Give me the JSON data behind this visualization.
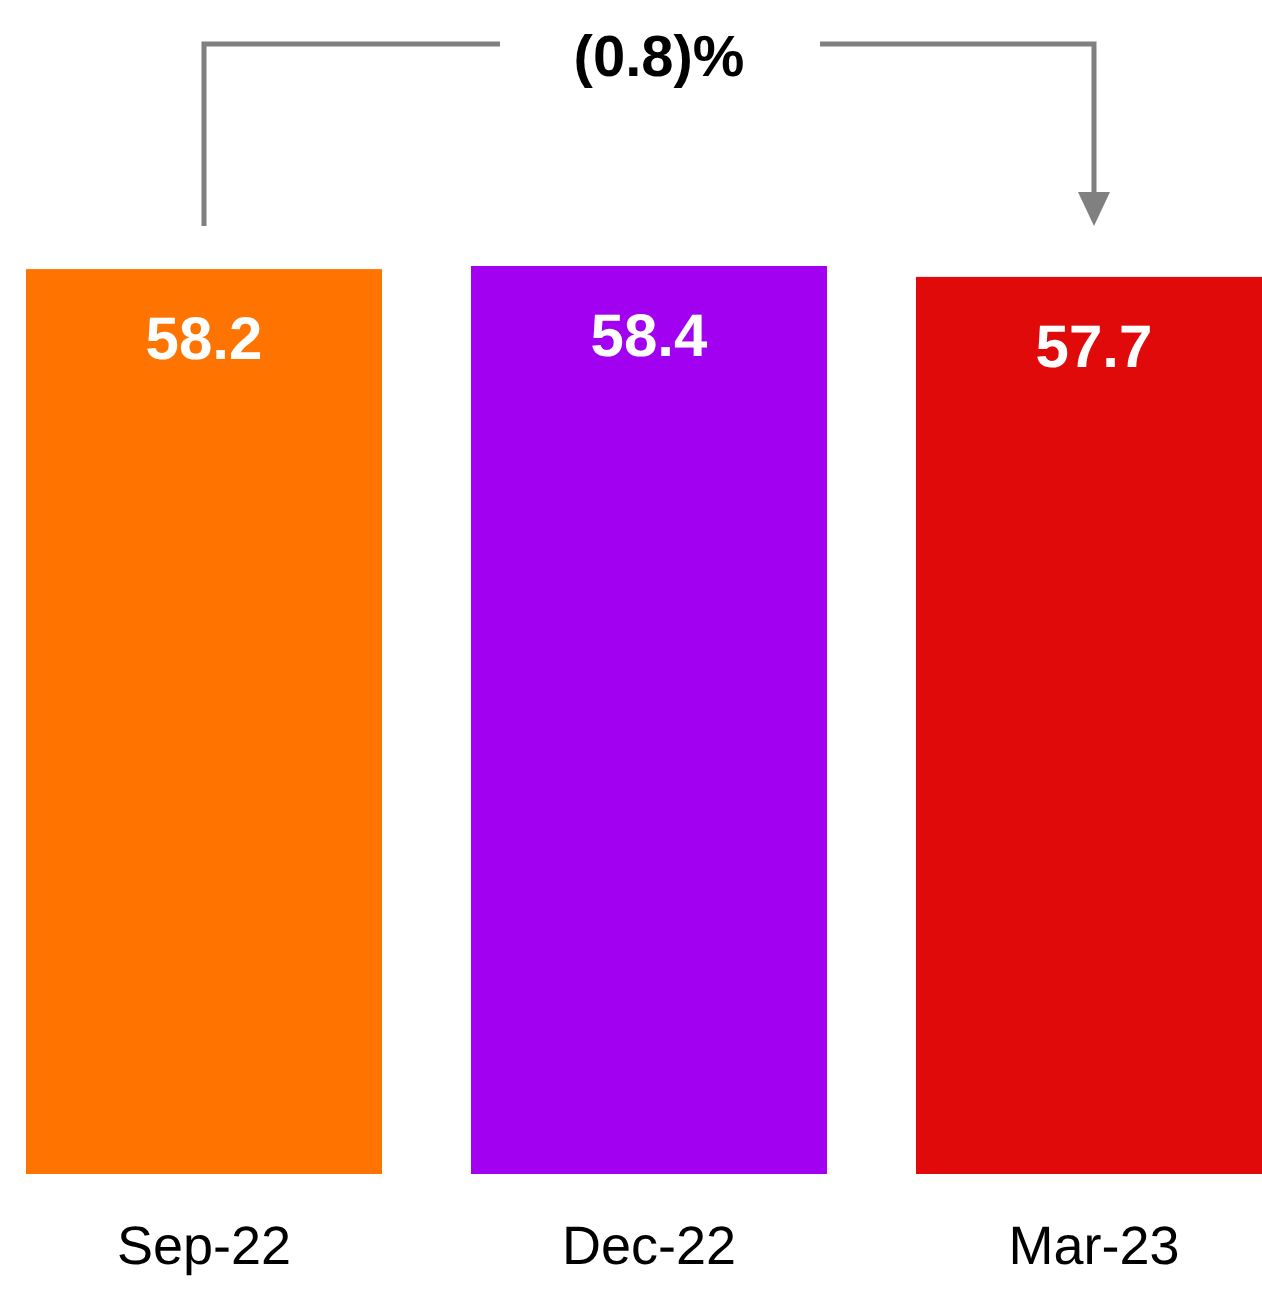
{
  "chart_data": {
    "type": "bar",
    "categories": [
      "Sep-22",
      "Dec-22",
      "Mar-23"
    ],
    "values": [
      58.2,
      58.4,
      57.7
    ],
    "colors": [
      "#ff7300",
      "#a200f0",
      "#e00a0a"
    ],
    "data_labels": true,
    "annotations": [
      "(0.8)%"
    ]
  }
}
